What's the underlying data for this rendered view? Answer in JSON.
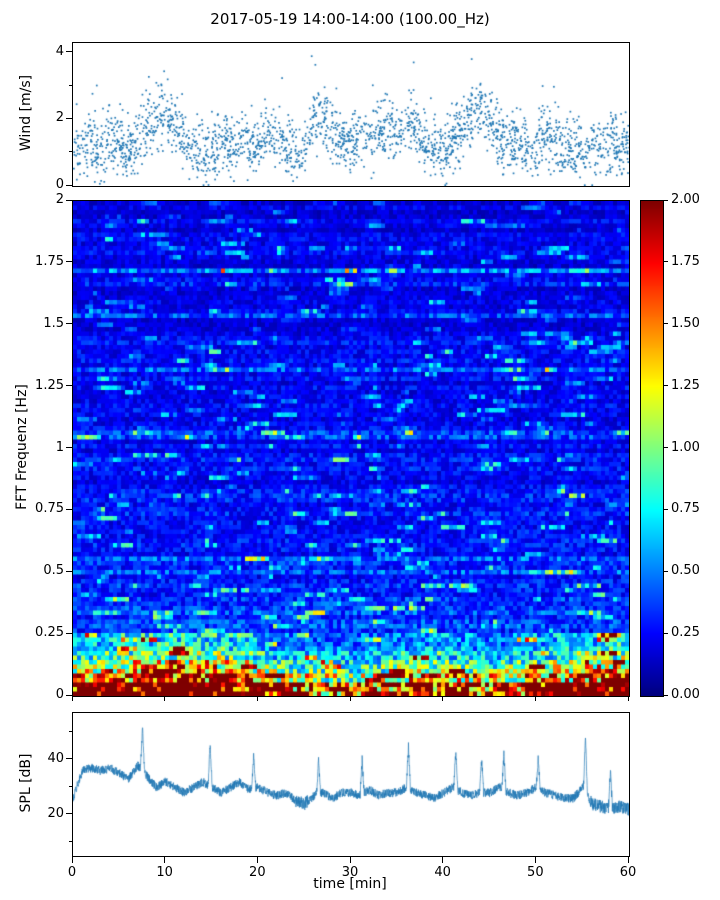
{
  "title": "2017-05-19 14:00-14:00 (100.00_Hz)",
  "colors": {
    "series": "#1f77b4",
    "axis": "#000000"
  },
  "chart_data": [
    {
      "type": "scatter",
      "name": "wind",
      "ylabel": "Wind [m/s]",
      "ylim": [
        0,
        4.3
      ],
      "yticks": [
        0,
        2,
        4
      ],
      "yticks_minor": [
        1,
        3
      ],
      "x_range": [
        0,
        60
      ],
      "marker_color": "#1f77b4",
      "minute_means": [
        1.3,
        1.2,
        1.0,
        1.1,
        1.5,
        1.2,
        1.0,
        1.3,
        1.8,
        2.0,
        2.2,
        1.8,
        1.3,
        1.0,
        0.9,
        1.1,
        1.4,
        1.2,
        1.5,
        1.3,
        1.1,
        1.6,
        1.4,
        1.2,
        1.0,
        1.3,
        1.9,
        2.1,
        1.6,
        1.3,
        1.2,
        1.5,
        1.3,
        1.6,
        1.8,
        1.5,
        2.0,
        1.7,
        1.3,
        1.1,
        1.0,
        1.4,
        1.8,
        2.1,
        2.3,
        2.0,
        1.6,
        1.3,
        1.5,
        1.2,
        1.4,
        1.6,
        1.3,
        1.1,
        1.0,
        0.9,
        1.2,
        1.0,
        1.3,
        1.1,
        1.5
      ]
    },
    {
      "type": "heatmap",
      "name": "spectrogram",
      "ylabel": "FFT Frequenz [Hz]",
      "ylim": [
        0,
        2
      ],
      "yticks": [
        0,
        0.25,
        0.5,
        0.75,
        1,
        1.25,
        1.5,
        1.75,
        2
      ],
      "x_range": [
        0,
        60
      ],
      "colormap": "jet",
      "clim": [
        0,
        2
      ],
      "colorbar_ticks": [
        0,
        0.25,
        0.5,
        0.75,
        1,
        1.25,
        1.5,
        1.75,
        2
      ],
      "freq_profile": [
        [
          0,
          1.95
        ],
        [
          0.02,
          1.8
        ],
        [
          0.04,
          1.45
        ],
        [
          0.07,
          1.1
        ],
        [
          0.1,
          0.95
        ],
        [
          0.15,
          0.68
        ],
        [
          0.2,
          0.52
        ],
        [
          0.25,
          0.42
        ],
        [
          0.3,
          0.34
        ],
        [
          0.4,
          0.28
        ],
        [
          0.6,
          0.25
        ],
        [
          0.8,
          0.24
        ],
        [
          1.0,
          0.23
        ],
        [
          1.3,
          0.22
        ],
        [
          1.6,
          0.2
        ],
        [
          2.0,
          0.19
        ]
      ],
      "time_gain": [
        [
          0,
          1.25
        ],
        [
          4,
          1.4
        ],
        [
          8,
          1.55
        ],
        [
          13,
          1.6
        ],
        [
          18,
          1.5
        ],
        [
          22,
          1.0
        ],
        [
          27,
          0.9
        ],
        [
          32,
          0.95
        ],
        [
          38,
          1.25
        ],
        [
          42,
          1.1
        ],
        [
          46,
          1.0
        ],
        [
          50,
          1.2
        ],
        [
          54,
          1.35
        ],
        [
          57,
          1.55
        ],
        [
          60,
          1.6
        ]
      ]
    },
    {
      "type": "line",
      "name": "spl",
      "ylabel": "SPL [dB]",
      "xlabel": "time [min]",
      "ylim": [
        5,
        57
      ],
      "yticks": [
        20,
        40
      ],
      "yticks_minor": [
        10,
        30,
        50
      ],
      "xticks": [
        0,
        10,
        20,
        30,
        40,
        50,
        60
      ],
      "line_color": "#1f77b4",
      "minute_means": [
        26,
        36,
        37,
        36,
        37,
        35,
        33,
        38,
        34,
        30,
        32,
        30,
        28,
        30,
        32,
        30,
        28,
        30,
        32,
        29,
        30,
        28,
        27,
        28,
        25,
        24,
        27,
        28,
        26,
        28,
        28,
        27,
        29,
        27,
        28,
        28,
        30,
        28,
        27,
        26,
        28,
        30,
        28,
        27,
        28,
        28,
        30,
        28,
        27,
        28,
        30,
        28,
        27,
        26,
        26,
        30,
        24,
        23,
        22,
        23,
        22
      ],
      "spikes": [
        [
          7.5,
          52
        ],
        [
          14.8,
          46
        ],
        [
          19.5,
          42
        ],
        [
          26.5,
          40
        ],
        [
          31.2,
          40
        ],
        [
          36.2,
          45
        ],
        [
          41.3,
          43
        ],
        [
          44.1,
          40
        ],
        [
          46.5,
          42
        ],
        [
          50.2,
          40
        ],
        [
          55.3,
          48
        ],
        [
          58.0,
          36
        ]
      ]
    }
  ]
}
